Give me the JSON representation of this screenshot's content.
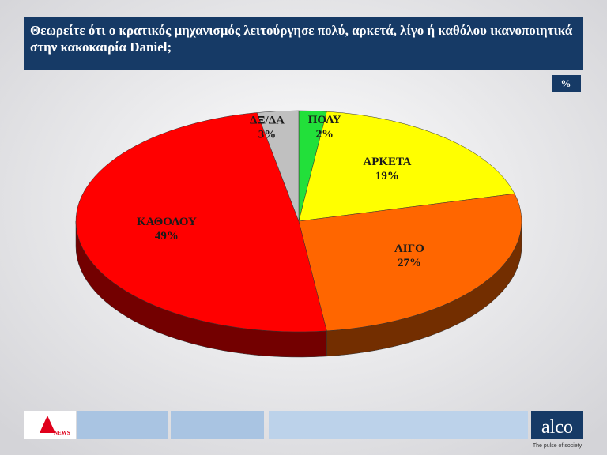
{
  "chart_data": {
    "type": "pie",
    "title": "Θεωρείτε ότι ο κρατικός μηχανισμός λειτούργησε πολύ, αρκετά, λίγο ή καθόλου ικανοποιητικά στην κακοκαιρία Daniel;",
    "categories": [
      "ΠΟΛΥ",
      "ΑΡΚΕΤΑ",
      "ΛΙΓΟ",
      "ΚΑΘΟΛΟΥ",
      "ΔΞ/ΔΑ"
    ],
    "values": [
      2,
      19,
      27,
      49,
      3
    ],
    "value_labels": [
      "2%",
      "19%",
      "27%",
      "49%",
      "3%"
    ],
    "colors": [
      "#22e03a",
      "#ffff00",
      "#ff6600",
      "#ff0000",
      "#c0c0c0"
    ],
    "unit_badge": "%"
  },
  "footer": {
    "news_logo": "NEWS",
    "brand": "alco",
    "tagline": "The pulse of society"
  }
}
